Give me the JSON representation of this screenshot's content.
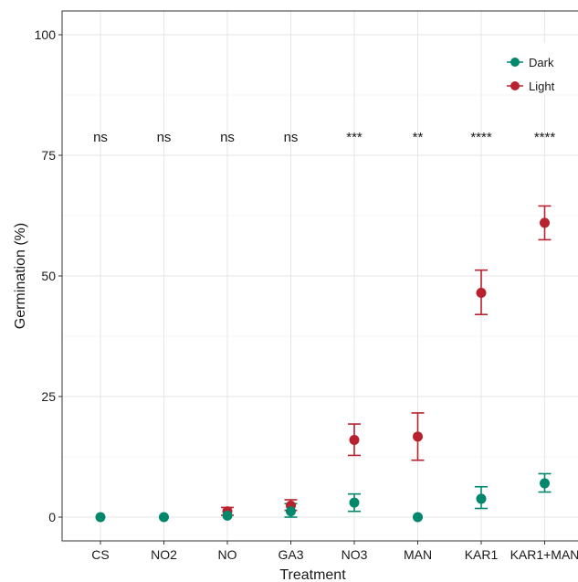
{
  "chart_data": {
    "type": "scatter",
    "title": "",
    "xlabel": "Treatment",
    "ylabel": "Germination (%)",
    "categories": [
      "CS",
      "NO2",
      "NO",
      "GA3",
      "NO3",
      "MAN",
      "KAR1",
      "KAR1+MAN"
    ],
    "ylim": [
      -5,
      102
    ],
    "y_ticks": [
      0,
      25,
      50,
      75,
      100
    ],
    "grid": true,
    "legend_position": "top-right",
    "significance": [
      "ns",
      "ns",
      "ns",
      "ns",
      "***",
      "**",
      "****",
      "****"
    ],
    "series": [
      {
        "name": "Dark",
        "color": "#00876c",
        "values": [
          0,
          0,
          0.3,
          1.2,
          3.0,
          0,
          3.8,
          7.0
        ],
        "error_low": [
          0,
          0,
          0,
          0,
          1.2,
          0,
          1.8,
          5.2
        ],
        "error_high": [
          0,
          0,
          0,
          2.8,
          4.8,
          0,
          6.3,
          9.0
        ]
      },
      {
        "name": "Light",
        "color": "#b8222e",
        "values": [
          null,
          null,
          1.2,
          2.4,
          16.0,
          16.7,
          46.5,
          61.0
        ],
        "error_low": [
          null,
          null,
          0.4,
          1.4,
          12.8,
          11.8,
          42.0,
          57.5
        ],
        "error_high": [
          null,
          null,
          2.0,
          3.6,
          19.3,
          21.6,
          51.2,
          64.5
        ]
      }
    ]
  }
}
